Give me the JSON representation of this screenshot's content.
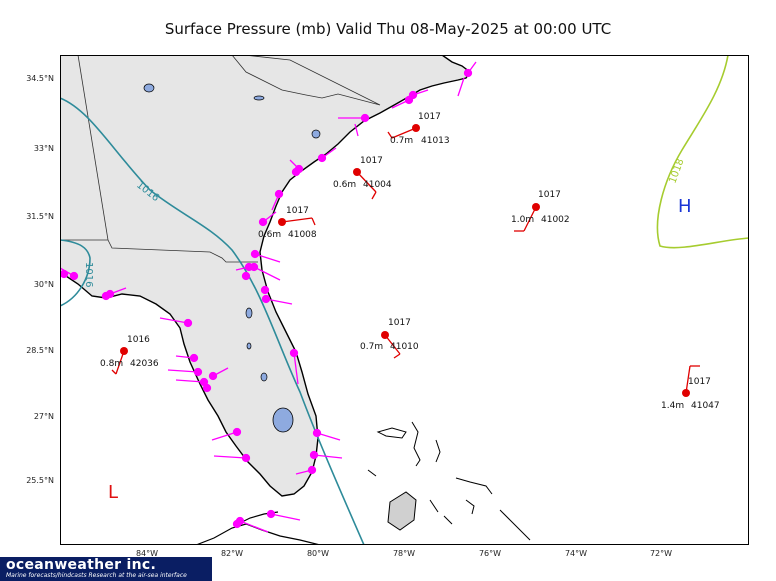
{
  "title": "Surface Pressure (mb) Valid Thu 08-May-2025 at 00:00 UTC",
  "lat_labels": [
    "34.5°N",
    "33°N",
    "31.5°N",
    "30°N",
    "28.5°N",
    "27°N",
    "25.5°N"
  ],
  "lon_labels": [
    "84°W",
    "82°W",
    "80°W",
    "78°W",
    "76°W",
    "74°W",
    "72°W"
  ],
  "isobars": [
    {
      "label": "1016",
      "color": "#2e8b9a"
    },
    {
      "label": "1018",
      "color": "#a6cc2f"
    }
  ],
  "pressure_centers": [
    {
      "symbol": "H",
      "color": "#1a35d6"
    },
    {
      "symbol": "L",
      "color": "#e01010"
    }
  ],
  "buoys": [
    {
      "id": "41013",
      "pressure": "1017",
      "wave": "0.7m"
    },
    {
      "id": "41004",
      "pressure": "1017",
      "wave": "0.6m"
    },
    {
      "id": "41008",
      "pressure": "1017",
      "wave": "0.6m"
    },
    {
      "id": "41002",
      "pressure": "1017",
      "wave": "1.0m"
    },
    {
      "id": "41010",
      "pressure": "1017",
      "wave": "0.7m"
    },
    {
      "id": "42036",
      "pressure": "1016",
      "wave": "0.8m"
    },
    {
      "id": "41047",
      "pressure": "1017",
      "wave": "1.4m"
    }
  ],
  "colors": {
    "land": "#e6e6e6",
    "lake": "#8eaadf",
    "buoy": "#e00000",
    "coastal_station": "#ff00ff",
    "ocean": "#ffffff"
  },
  "logo": {
    "name": "oceanweather inc.",
    "tagline": "Marine forecasts/hindcasts  Research at the air-sea interface"
  }
}
